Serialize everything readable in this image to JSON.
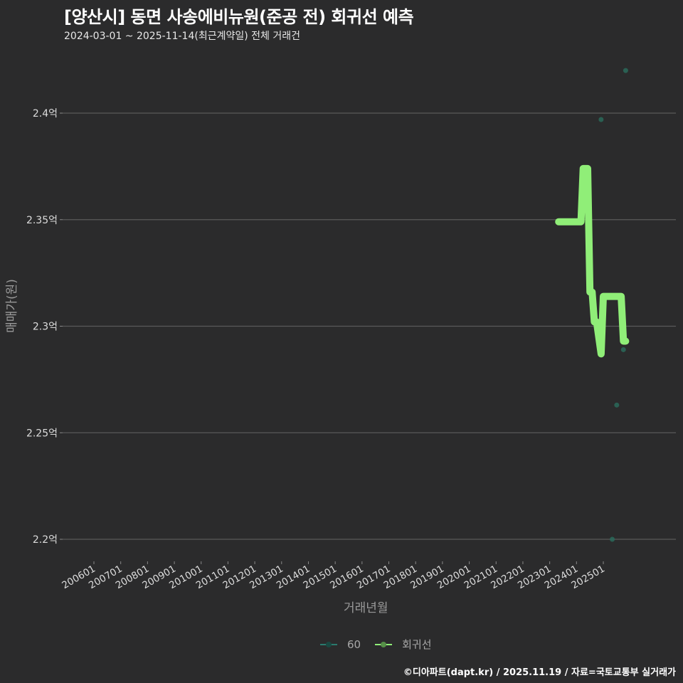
{
  "header": {
    "title": "[양산시] 동면 사송에비뉴원(준공 전) 회귀선 예측",
    "subtitle": "2024-03-01 ~ 2025-11-14(최근계약일) 전체 거래건"
  },
  "axes": {
    "ylabel": "매매가(원)",
    "xlabel": "거래년월"
  },
  "legend": {
    "items": [
      {
        "label": "60",
        "color": "#2a7a6e"
      },
      {
        "label": "회귀선",
        "color": "#90ee78"
      }
    ]
  },
  "footer": {
    "credit": "©디아파트(dapt.kr) / 2025.11.19 / 자료=국토교통부 실거래가"
  },
  "colors": {
    "background": "#2b2b2c",
    "grid": "#5a5a5a",
    "points": "#2a6a5a",
    "regression": "#90ee78"
  },
  "chart_data": {
    "type": "scatter",
    "title": "[양산시] 동면 사송에비뉴원(준공 전) 회귀선 예측",
    "subtitle": "2024-03-01 ~ 2025-11-14(최근계약일) 전체 거래건",
    "xlabel": "거래년월",
    "ylabel": "매매가(원)",
    "x_ticks": [
      "200601",
      "200701",
      "200801",
      "200901",
      "201001",
      "201101",
      "201201",
      "201301",
      "201401",
      "201501",
      "201601",
      "201701",
      "201801",
      "201901",
      "202001",
      "202101",
      "202201",
      "202301",
      "202401",
      "202501"
    ],
    "y_ticks": [
      "2.2억",
      "2.25억",
      "2.3억",
      "2.35억",
      "2.4억"
    ],
    "y_tick_values": [
      22000,
      22500,
      23000,
      23500,
      24000
    ],
    "ylim_manwon": [
      21800,
      24300
    ],
    "grid": "horizontal",
    "legend_position": "bottom",
    "series": [
      {
        "name": "60",
        "type": "scatter",
        "points": [
          {
            "x": "2024-12",
            "y": 23970
          },
          {
            "x": "2025-05",
            "y": 22000
          },
          {
            "x": "2025-07",
            "y": 22630
          },
          {
            "x": "2025-10",
            "y": 22890
          },
          {
            "x": "2025-11",
            "y": 24200
          }
        ]
      },
      {
        "name": "회귀선",
        "type": "line",
        "points": [
          {
            "x": "2023-05",
            "y": 23490
          },
          {
            "x": "2024-03",
            "y": 23490
          },
          {
            "x": "2024-04",
            "y": 23740
          },
          {
            "x": "2024-06",
            "y": 23740
          },
          {
            "x": "2024-07",
            "y": 23160
          },
          {
            "x": "2024-08",
            "y": 23160
          },
          {
            "x": "2024-09",
            "y": 23020
          },
          {
            "x": "2024-10",
            "y": 23020
          },
          {
            "x": "2024-12",
            "y": 22870
          },
          {
            "x": "2025-01",
            "y": 23140
          },
          {
            "x": "2025-09",
            "y": 23140
          },
          {
            "x": "2025-10",
            "y": 22930
          },
          {
            "x": "2025-11",
            "y": 22930
          }
        ]
      }
    ]
  }
}
